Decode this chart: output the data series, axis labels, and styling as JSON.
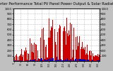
{
  "title": "Solar PV/Inverter Performance Total PV Panel Power Output & Solar Radiation",
  "title_fontsize": 3.8,
  "bg_color": "#c0c0c0",
  "plot_bg_color": "#ffffff",
  "grid_color": "#888888",
  "red_color": "#cc0000",
  "blue_color": "#0000bb",
  "ylim_left": [
    0,
    1000
  ],
  "ylim_right": [
    0,
    1000
  ],
  "yticks_left": [
    100,
    200,
    300,
    400,
    500,
    600,
    700,
    800,
    900,
    1000
  ],
  "yticks_right": [
    100,
    200,
    300,
    400,
    500,
    600,
    700,
    800,
    900,
    1000
  ],
  "ytick_fontsize": 2.8,
  "xtick_fontsize": 2.2,
  "legend_fontsize": 3.0,
  "num_points": 365,
  "peak_point": 182,
  "peak_power": 950,
  "seed": 42
}
